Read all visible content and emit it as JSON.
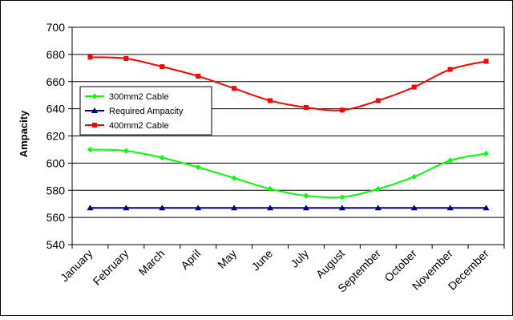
{
  "chart_data": {
    "type": "line",
    "title": "",
    "xlabel": "",
    "ylabel": "Ampacity",
    "ylim": [
      540,
      700
    ],
    "yticks": [
      540,
      560,
      580,
      600,
      620,
      640,
      660,
      680,
      700
    ],
    "grid": true,
    "legend_position": "left",
    "categories": [
      "January",
      "February",
      "March",
      "April",
      "May",
      "June",
      "July",
      "August",
      "September",
      "October",
      "November",
      "December"
    ],
    "series": [
      {
        "name": "300mm2 Cable",
        "color": "#00ff00",
        "marker": "diamond",
        "values": [
          610,
          609,
          604,
          597,
          589,
          581,
          576,
          575,
          581,
          590,
          602,
          607
        ]
      },
      {
        "name": "Required Ampacity",
        "color": "#000080",
        "marker": "triangle",
        "values": [
          567,
          567,
          567,
          567,
          567,
          567,
          567,
          567,
          567,
          567,
          567,
          567
        ]
      },
      {
        "name": "400mm2 Cable",
        "color": "#ff0000",
        "marker": "square",
        "values": [
          678,
          677,
          671,
          664,
          655,
          646,
          641,
          639,
          646,
          656,
          669,
          675
        ]
      }
    ]
  }
}
